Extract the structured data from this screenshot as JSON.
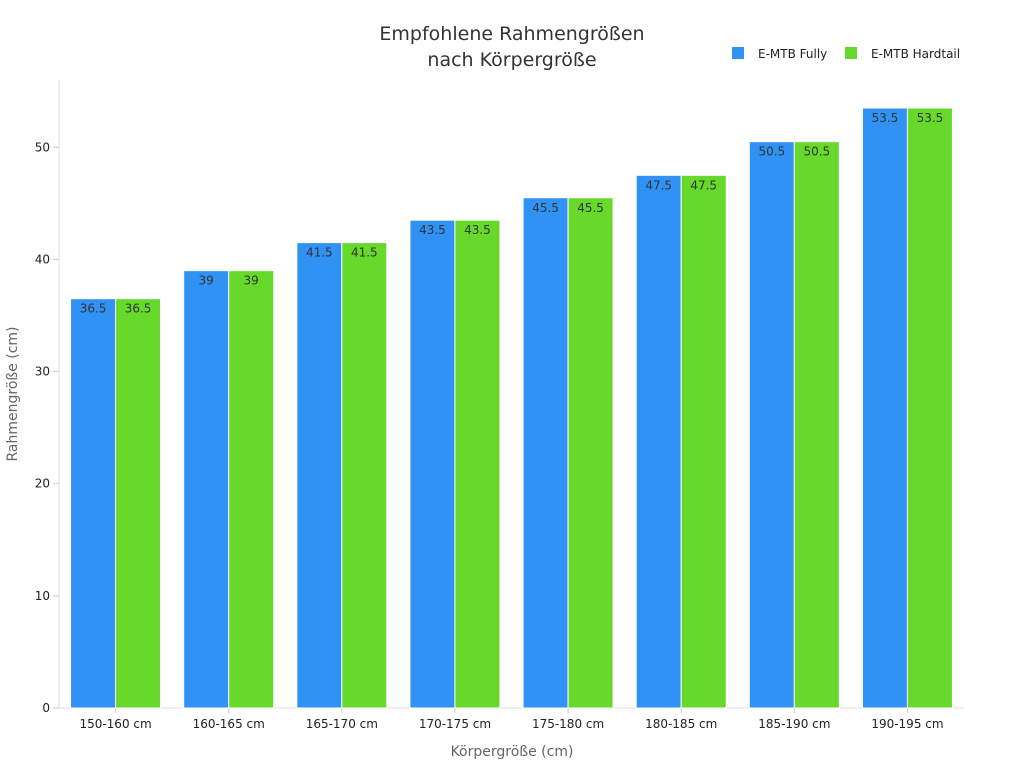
{
  "chart_data": {
    "type": "bar",
    "title": [
      "Empfohlene Rahmengrößen",
      "nach Körpergröße"
    ],
    "xlabel": "Körpergröße (cm)",
    "ylabel": "Rahmengröße (cm)",
    "categories": [
      "150-160 cm",
      "160-165 cm",
      "165-170 cm",
      "170-175 cm",
      "175-180 cm",
      "180-185 cm",
      "185-190 cm",
      "190-195 cm"
    ],
    "series": [
      {
        "name": "E-MTB Fully",
        "color": "#3092f5",
        "values": [
          36.5,
          39,
          41.5,
          43.5,
          45.5,
          47.5,
          50.5,
          53.5
        ]
      },
      {
        "name": "E-MTB Hardtail",
        "color": "#66d92a",
        "values": [
          36.5,
          39,
          41.5,
          43.5,
          45.5,
          47.5,
          50.5,
          53.5
        ]
      }
    ],
    "yticks": [
      0,
      10,
      20,
      30,
      40,
      50
    ],
    "ylim": [
      0,
      56
    ],
    "grid": false,
    "legend_position": "top-right"
  }
}
